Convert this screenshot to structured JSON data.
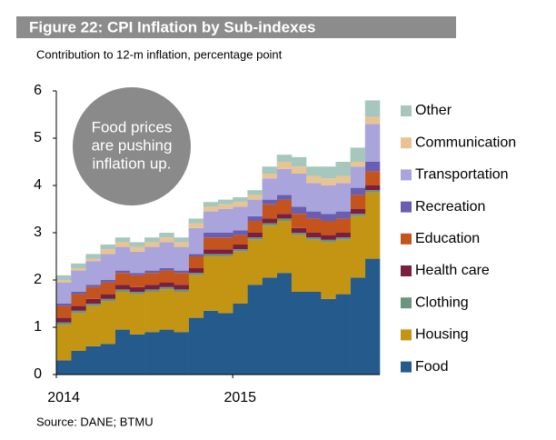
{
  "chart_data": {
    "type": "stacked_bar",
    "title": "Figure 22: CPI Inflation by Sub-indexes",
    "subtitle": "Contribution to 12-m inflation, percentage point",
    "source": "Source: DANE; BTMU",
    "annotation": [
      "Food prices",
      "are pushing",
      "inflation up."
    ],
    "categories": [
      "2014",
      null,
      null,
      null,
      null,
      null,
      null,
      null,
      null,
      null,
      null,
      null,
      "2015",
      null,
      null,
      null,
      null,
      null,
      null,
      null,
      null,
      null
    ],
    "ylim": [
      0,
      6
    ],
    "yticks": [
      0,
      1,
      2,
      3,
      4,
      5,
      6
    ],
    "series": [
      {
        "name": "Food",
        "color": "#245a8c",
        "values": [
          0.3,
          0.5,
          0.6,
          0.65,
          0.95,
          0.85,
          0.9,
          0.95,
          0.9,
          1.2,
          1.35,
          1.3,
          1.5,
          1.9,
          2.05,
          2.15,
          1.75,
          1.75,
          1.6,
          1.7,
          2.05,
          2.45
        ]
      },
      {
        "name": "Housing",
        "color": "#c39512",
        "values": [
          0.75,
          0.8,
          0.85,
          0.9,
          0.8,
          0.85,
          0.85,
          0.85,
          0.85,
          0.9,
          1.15,
          1.2,
          1.1,
          0.95,
          1.1,
          1.1,
          1.2,
          1.1,
          1.2,
          1.15,
          1.3,
          1.4
        ]
      },
      {
        "name": "Clothing",
        "color": "#6b957e",
        "values": [
          0.05,
          0.05,
          0.05,
          0.05,
          0.05,
          0.05,
          0.05,
          0.05,
          0.05,
          0.05,
          0.05,
          0.05,
          0.05,
          0.05,
          0.05,
          0.05,
          0.05,
          0.05,
          0.05,
          0.05,
          0.05,
          0.05
        ]
      },
      {
        "name": "Health care",
        "color": "#7a1f3f",
        "values": [
          0.1,
          0.1,
          0.1,
          0.1,
          0.1,
          0.1,
          0.1,
          0.1,
          0.1,
          0.1,
          0.1,
          0.1,
          0.1,
          0.1,
          0.1,
          0.1,
          0.1,
          0.1,
          0.1,
          0.1,
          0.1,
          0.1
        ]
      },
      {
        "name": "Education",
        "color": "#c5531c",
        "values": [
          0.25,
          0.25,
          0.25,
          0.25,
          0.25,
          0.25,
          0.25,
          0.25,
          0.25,
          0.25,
          0.25,
          0.25,
          0.2,
          0.25,
          0.3,
          0.3,
          0.3,
          0.3,
          0.3,
          0.3,
          0.3,
          0.3
        ]
      },
      {
        "name": "Recreation",
        "color": "#6a5eb2",
        "values": [
          0.05,
          0.05,
          0.05,
          0.05,
          0.05,
          0.05,
          0.05,
          0.05,
          0.05,
          0.05,
          0.1,
          0.1,
          0.1,
          0.1,
          0.1,
          0.1,
          0.15,
          0.15,
          0.15,
          0.15,
          0.15,
          0.2
        ]
      },
      {
        "name": "Transportation",
        "color": "#a9a5dc",
        "values": [
          0.45,
          0.45,
          0.5,
          0.55,
          0.5,
          0.45,
          0.5,
          0.55,
          0.5,
          0.55,
          0.45,
          0.5,
          0.5,
          0.35,
          0.45,
          0.55,
          0.7,
          0.6,
          0.6,
          0.6,
          0.45,
          0.8
        ]
      },
      {
        "name": "Communication",
        "color": "#e9c391",
        "values": [
          0.05,
          0.05,
          0.05,
          0.1,
          0.1,
          0.1,
          0.1,
          0.1,
          0.1,
          0.1,
          0.1,
          0.1,
          0.1,
          0.1,
          0.1,
          0.15,
          0.15,
          0.15,
          0.15,
          0.15,
          0.1,
          0.15
        ]
      },
      {
        "name": "Other",
        "color": "#a6c7bd",
        "values": [
          0.1,
          0.1,
          0.1,
          0.1,
          0.1,
          0.1,
          0.1,
          0.1,
          0.1,
          0.1,
          0.1,
          0.1,
          0.1,
          0.1,
          0.15,
          0.15,
          0.2,
          0.2,
          0.25,
          0.3,
          0.3,
          0.35
        ]
      }
    ]
  }
}
